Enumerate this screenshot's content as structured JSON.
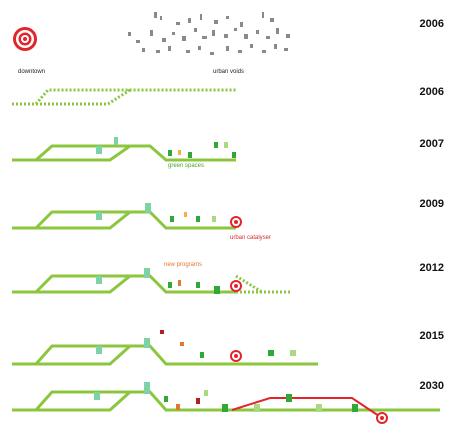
{
  "years": {
    "row0": "2006",
    "row1": "2006",
    "row2": "2007",
    "row3": "2009",
    "row4": "2012",
    "row5": "2015",
    "row6": "2030"
  },
  "labels": {
    "downtown": "downtown",
    "urban_voids": "urban voids",
    "green_spaces": "green spaces",
    "urban_catalyser": "urban catalyser",
    "new_programs": "new programs"
  },
  "colors": {
    "track": "#8cc63f",
    "catalyst_red": "#e1252b",
    "void_gray": "#888888",
    "program_orange": "#f08c3a"
  },
  "icons": [
    "target-icon"
  ]
}
